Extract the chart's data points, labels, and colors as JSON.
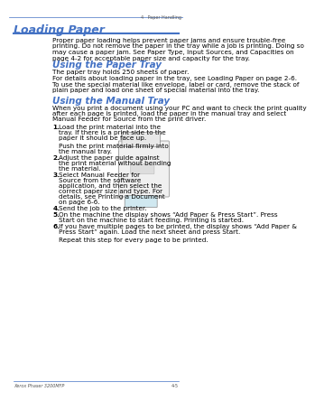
{
  "bg_color": "#ffffff",
  "header_line_color": "#4472c4",
  "header_text_color": "#4472c4",
  "body_text_color": "#000000",
  "page_label": "4   Paper Handling",
  "footer_left": "Xerox Phaser 3200MFP",
  "footer_right": "4-5",
  "title": "Loading Paper",
  "section1_heading": "Using the Paper Tray",
  "section2_heading": "Using the Manual Tray",
  "intro_text": "Proper paper loading helps prevent paper jams and ensure trouble-free\nprinting. Do not remove the paper in the tray while a job is printing. Doing so\nmay cause a paper jam. See Paper Type, Input Sources, and Capacities on\npage 4-2 for acceptable paper size and capacity for the tray.",
  "paper_tray_lines": [
    "The paper tray holds 250 sheets of paper.",
    "For details about loading paper in the tray, see Loading Paper on page 2-6.",
    "To use the special material like envelope, label or card, remove the stack of\nplain paper and load one sheet of special material into the tray."
  ],
  "manual_tray_intro": "When you print a document using your PC and want to check the print quality\nafter each page is printed, load the paper in the manual tray and select\nManual Feeder for Source from the print driver.",
  "steps": [
    "Load the print material into the\ntray. If there is a print side to the\npaper it should be face up.\n\nPush the print material firmly into\nthe manual tray.",
    "Adjust the paper guide against\nthe print material without bending\nthe material.",
    "Select Manual Feeder for\nSource from the software\napplication, and then select the\ncorrect paper size and type. For\ndetails, see Printing a Document\non page 6-6.",
    "Send the job to the printer.",
    "On the machine the display shows “Add Paper & Press Start”. Press\nStart on the machine to start feeding. Printing is started.",
    "If you have multiple pages to be printed, the display shows “Add Paper &\nPress Start” again. Load the next sheet and press Start.\n\nRepeat this step for every page to be printed."
  ],
  "bold_words_step1": [],
  "title_fontsize": 9,
  "heading_fontsize": 7.5,
  "body_fontsize": 5.2,
  "small_fontsize": 4.5
}
